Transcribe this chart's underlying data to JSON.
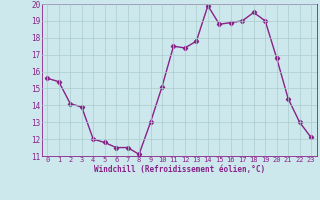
{
  "x": [
    0,
    1,
    2,
    3,
    4,
    5,
    6,
    7,
    8,
    9,
    10,
    11,
    12,
    13,
    14,
    15,
    16,
    17,
    18,
    19,
    20,
    21,
    22,
    23
  ],
  "y": [
    15.6,
    15.4,
    14.1,
    13.9,
    12.0,
    11.8,
    11.5,
    11.5,
    11.1,
    13.0,
    15.1,
    17.5,
    17.4,
    17.8,
    19.9,
    18.8,
    18.9,
    19.0,
    19.5,
    19.0,
    16.8,
    14.4,
    13.0,
    12.1
  ],
  "line_color": "#882288",
  "marker": "D",
  "marker_size": 2.2,
  "linewidth": 1.0,
  "xlabel": "Windchill (Refroidissement éolien,°C)",
  "xlim": [
    -0.5,
    23.5
  ],
  "ylim": [
    11,
    20
  ],
  "yticks": [
    11,
    12,
    13,
    14,
    15,
    16,
    17,
    18,
    19,
    20
  ],
  "xticks": [
    0,
    1,
    2,
    3,
    4,
    5,
    6,
    7,
    8,
    9,
    10,
    11,
    12,
    13,
    14,
    15,
    16,
    17,
    18,
    19,
    20,
    21,
    22,
    23
  ],
  "background_color": "#cce8ec",
  "grid_color": "#aacccc",
  "tick_color": "#882288",
  "label_color": "#882288"
}
